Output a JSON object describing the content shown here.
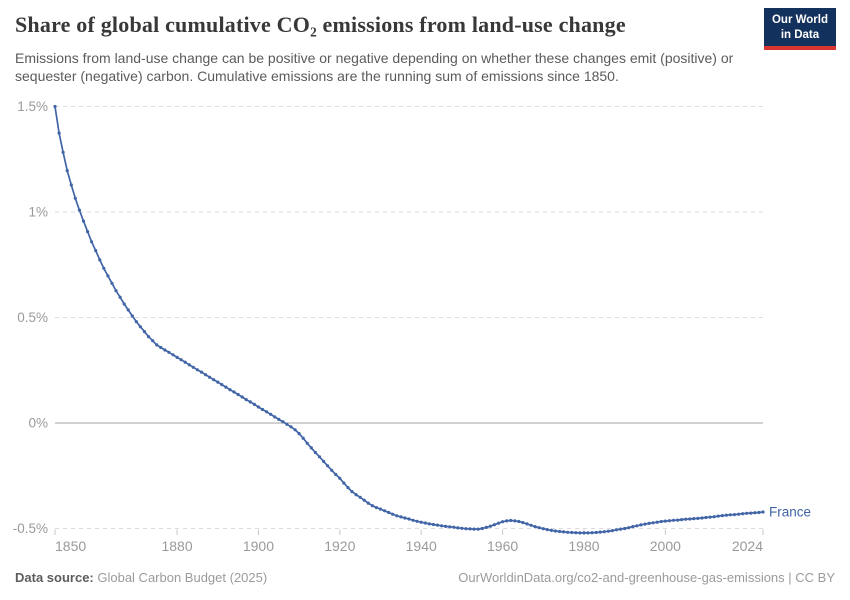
{
  "header": {
    "title": "Share of global cumulative CO₂ emissions from land-use change",
    "subtitle": "Emissions from land-use change can be positive or negative depending on whether these changes emit (positive) or sequester (negative) carbon. Cumulative emissions are the running sum of emissions since 1850.",
    "logo": {
      "line1": "Our World",
      "line2": "in Data"
    }
  },
  "footer": {
    "source_label": "Data source:",
    "source_text": " Global Carbon Budget (2025)",
    "license_text": "OurWorldinData.org/co2-and-greenhouse-gas-emissions | CC BY"
  },
  "colors": {
    "series_blue": "#4165a6",
    "gridline": "#dcdcdc",
    "zero_line": "#a3a3a3",
    "tick_mark": "#c4c7c8",
    "axis_text": "#9a9a9a",
    "logo_bg": "#12315c",
    "logo_red": "#d7362e"
  },
  "chart_data": {
    "type": "line",
    "title": "Share of global cumulative CO₂ emissions from land-use change",
    "xlabel": "",
    "ylabel": "",
    "grid": "dashed horizontal gridlines, solid zero line",
    "legend_position": "end-of-line label",
    "xlim": [
      1850,
      2024
    ],
    "ylim": [
      -0.55,
      1.5
    ],
    "y_unit": "%",
    "x_ticks": [
      1850,
      1880,
      1900,
      1920,
      1940,
      1960,
      1980,
      2000,
      2024
    ],
    "y_ticks": [
      {
        "value": 1.5,
        "label": "1.5%"
      },
      {
        "value": 1.0,
        "label": "1%"
      },
      {
        "value": 0.5,
        "label": "0.5%"
      },
      {
        "value": 0.0,
        "label": "0%"
      },
      {
        "value": -0.5,
        "label": "-0.5%"
      }
    ],
    "series": [
      {
        "name": "France",
        "color": "#4165a6",
        "start_year": 1850,
        "values": [
          1.5,
          1.374,
          1.283,
          1.196,
          1.128,
          1.065,
          1.009,
          0.957,
          0.907,
          0.859,
          0.817,
          0.773,
          0.733,
          0.697,
          0.662,
          0.627,
          0.596,
          0.564,
          0.536,
          0.507,
          0.48,
          0.456,
          0.433,
          0.409,
          0.39,
          0.37,
          0.358,
          0.346,
          0.335,
          0.323,
          0.311,
          0.3,
          0.288,
          0.276,
          0.264,
          0.252,
          0.241,
          0.229,
          0.217,
          0.205,
          0.194,
          0.182,
          0.17,
          0.158,
          0.147,
          0.135,
          0.123,
          0.111,
          0.1,
          0.088,
          0.076,
          0.064,
          0.053,
          0.041,
          0.029,
          0.017,
          0.006,
          -0.006,
          -0.018,
          -0.032,
          -0.05,
          -0.072,
          -0.096,
          -0.118,
          -0.14,
          -0.16,
          -0.182,
          -0.203,
          -0.224,
          -0.244,
          -0.262,
          -0.285,
          -0.306,
          -0.325,
          -0.34,
          -0.352,
          -0.366,
          -0.38,
          -0.392,
          -0.401,
          -0.408,
          -0.416,
          -0.424,
          -0.432,
          -0.44,
          -0.445,
          -0.45,
          -0.455,
          -0.461,
          -0.466,
          -0.47,
          -0.474,
          -0.478,
          -0.481,
          -0.484,
          -0.487,
          -0.49,
          -0.492,
          -0.494,
          -0.497,
          -0.499,
          -0.501,
          -0.502,
          -0.503,
          -0.503,
          -0.5,
          -0.495,
          -0.489,
          -0.482,
          -0.475,
          -0.468,
          -0.464,
          -0.462,
          -0.464,
          -0.467,
          -0.472,
          -0.478,
          -0.485,
          -0.491,
          -0.496,
          -0.501,
          -0.505,
          -0.509,
          -0.512,
          -0.514,
          -0.516,
          -0.518,
          -0.519,
          -0.52,
          -0.521,
          -0.521,
          -0.521,
          -0.52,
          -0.519,
          -0.517,
          -0.515,
          -0.513,
          -0.51,
          -0.506,
          -0.503,
          -0.5,
          -0.496,
          -0.491,
          -0.487,
          -0.483,
          -0.479,
          -0.476,
          -0.473,
          -0.47,
          -0.467,
          -0.465,
          -0.463,
          -0.461,
          -0.46,
          -0.458,
          -0.456,
          -0.455,
          -0.453,
          -0.452,
          -0.45,
          -0.448,
          -0.446,
          -0.444,
          -0.441,
          -0.439,
          -0.437,
          -0.435,
          -0.434,
          -0.432,
          -0.43,
          -0.428,
          -0.427,
          -0.425,
          -0.424,
          -0.422
        ]
      }
    ]
  }
}
